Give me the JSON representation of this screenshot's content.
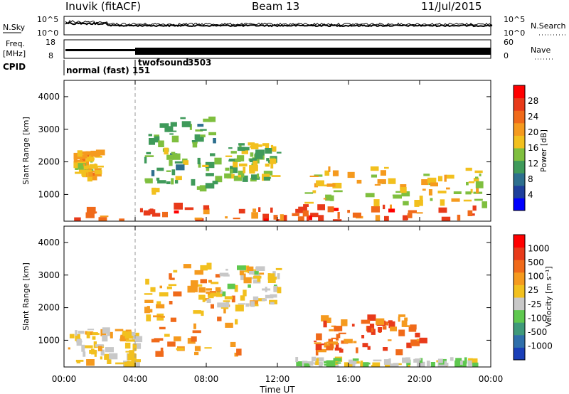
{
  "header": {
    "station": "Inuvik (fitACF)",
    "beam": "Beam 13",
    "date": "11/Jul/2015"
  },
  "summary": {
    "nsky_label": "N.Sky",
    "nsky_ticks": [
      "10^5",
      "10^0"
    ],
    "nsearch_label": "N.Search",
    "nsearch_ticks": [
      "10^5",
      "10^0"
    ],
    "freq_label_1": "Freq.",
    "freq_label_2": "[MHz]",
    "freq_ticks": [
      "18",
      "8"
    ],
    "nave_label": "Nave",
    "nave_ticks": [
      "60",
      "0"
    ],
    "cpid_label": "CPID",
    "cpid_segments": [
      {
        "name": "normal (fast)",
        "id": "151",
        "start_hour": 0
      },
      {
        "name": "twofsound",
        "id": "3503",
        "start_hour": 4
      }
    ]
  },
  "axes": {
    "x_label": "Time UT",
    "x_ticks": [
      "00:00",
      "04:00",
      "08:00",
      "12:00",
      "16:00",
      "20:00",
      "00:00"
    ],
    "y_label": "Slant Range [km]",
    "y_ticks": [
      "4000",
      "3000",
      "2000",
      "1000"
    ]
  },
  "power_scale": {
    "label": "Power [dB]",
    "ticks": [
      "28",
      "24",
      "20",
      "16",
      "12",
      "8",
      "4"
    ],
    "colors": [
      "#0000ff",
      "#1e3f9c",
      "#2d6f8e",
      "#3f9a5a",
      "#7fbf3f",
      "#f2c01e",
      "#f59a1e",
      "#f06a1a",
      "#e83a1a",
      "#ff0000"
    ]
  },
  "velocity_scale": {
    "label": "Velocity [m s⁻¹]",
    "ticks": [
      "1000",
      "500",
      "100",
      "25",
      "-25",
      "-100",
      "-500",
      "-1000"
    ],
    "colors": [
      "#1a3fb8",
      "#2f6faa",
      "#3f9a7a",
      "#5fc84f",
      "#c8c8c8",
      "#f2c01e",
      "#f59a1e",
      "#f06a1a",
      "#e83a1a",
      "#ff0000"
    ]
  },
  "chart_data": [
    {
      "type": "heatmap",
      "title": "Power",
      "x_range_hours": [
        0,
        24
      ],
      "ylim": [
        180,
        4500
      ],
      "colorbar_range": [
        0,
        30
      ],
      "features": [
        {
          "t0": 0.2,
          "t1": 24,
          "r0": 200,
          "r1": 750,
          "value": 24
        },
        {
          "t0": 0.5,
          "t1": 1.8,
          "r0": 1600,
          "r1": 2400,
          "value": 18
        },
        {
          "t0": 4.5,
          "t1": 8.5,
          "r0": 1200,
          "r1": 3400,
          "value": 12
        },
        {
          "t0": 9,
          "t1": 12,
          "r0": 1500,
          "r1": 2600,
          "value": 14
        },
        {
          "t0": 13.5,
          "t1": 23.5,
          "r0": 700,
          "r1": 1900,
          "value": 16
        }
      ]
    },
    {
      "type": "heatmap",
      "title": "Velocity",
      "x_range_hours": [
        0,
        24
      ],
      "ylim": [
        180,
        4500
      ],
      "colorbar_range": [
        -1000,
        1000
      ],
      "features": [
        {
          "t0": 0.2,
          "t1": 4,
          "r0": 300,
          "r1": 1400,
          "value": 50
        },
        {
          "t0": 4.5,
          "t1": 10,
          "r0": 600,
          "r1": 3400,
          "value": 300
        },
        {
          "t0": 8,
          "t1": 12,
          "r0": 2000,
          "r1": 3300,
          "value": 10
        },
        {
          "t0": 13,
          "t1": 23,
          "r0": 200,
          "r1": 500,
          "value": -100
        },
        {
          "t0": 14,
          "t1": 20,
          "r0": 700,
          "r1": 1800,
          "value": 500
        }
      ]
    }
  ]
}
